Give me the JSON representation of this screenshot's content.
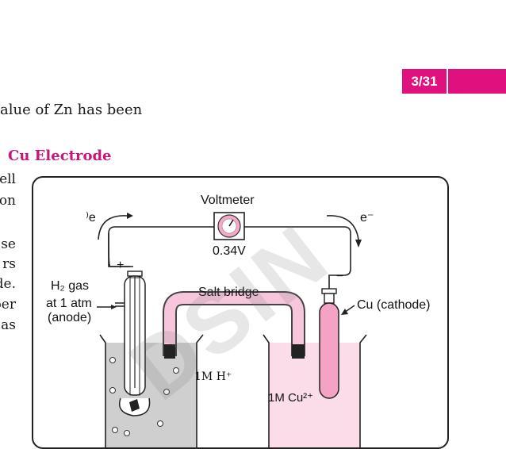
{
  "page": {
    "number": "3/31"
  },
  "text": {
    "line1": "alue of Zn has been",
    "heading": "Cu Electrode",
    "left_fragments": [
      "ell",
      "on",
      "se",
      "rs",
      "de.",
      "per",
      "as"
    ]
  },
  "figure": {
    "voltmeter_label": "Voltmeter",
    "voltage": "0.34V",
    "electron_left": "⁾e",
    "electron_right": "e⁻",
    "plus_sign": "+",
    "minus_sign": "−",
    "h2_gas_line1": "H₂ gas",
    "h2_gas_line2": "at 1 atm",
    "anode_label": "(anode)",
    "salt_bridge": "Salt bridge",
    "cathode_label": "Cu (cathode)",
    "h_solution": "1M H⁺",
    "cu_solution": "1M Cu²⁺"
  },
  "watermark": "DSIN",
  "colors": {
    "accent": "#e0117f",
    "heading": "#c8177a",
    "bridge": "#f7c6dc",
    "cu_solution": "#fbdce9",
    "h_solution": "#cfcfcf"
  }
}
